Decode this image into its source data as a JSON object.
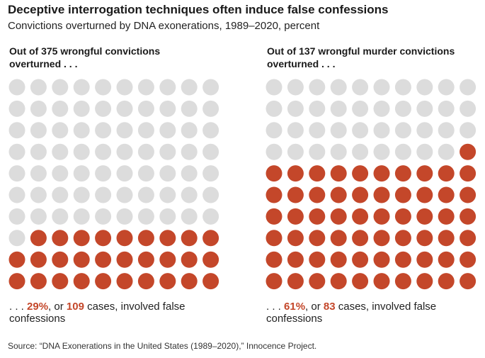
{
  "title": "Deceptive interrogation techniques often induce false confessions",
  "subtitle": "Convictions overturned by DNA exonerations, 1989–2020, percent",
  "colors": {
    "highlight": "#c4472a",
    "neutral": "#dcdcdc"
  },
  "chart_data": [
    {
      "type": "waffle",
      "heading_line1": "Out of 375 wrongful convictions",
      "heading_line2": "overturned . . .",
      "total_cases": 375,
      "grid_columns": 10,
      "grid_rows": 10,
      "highlighted_dots": 29,
      "caption_prefix": ". . . ",
      "percent_text": "29%",
      "caption_mid": ", or ",
      "cases_text": "109",
      "caption_suffix": " cases, involved false",
      "caption_line2": "confessions",
      "percent": 29,
      "cases": 109
    },
    {
      "type": "waffle",
      "heading_line1": "Out of 137 wrongful murder convictions",
      "heading_line2": "overturned . . .",
      "total_cases": 137,
      "grid_columns": 10,
      "grid_rows": 10,
      "highlighted_dots": 61,
      "caption_prefix": ". . . ",
      "percent_text": "61%",
      "caption_mid": ", or ",
      "cases_text": "83",
      "caption_suffix": " cases, involved false",
      "caption_line2": "confessions",
      "percent": 61,
      "cases": 83
    }
  ],
  "source": "Source: “DNA Exonerations in the United States (1989–2020),” Innocence Project."
}
